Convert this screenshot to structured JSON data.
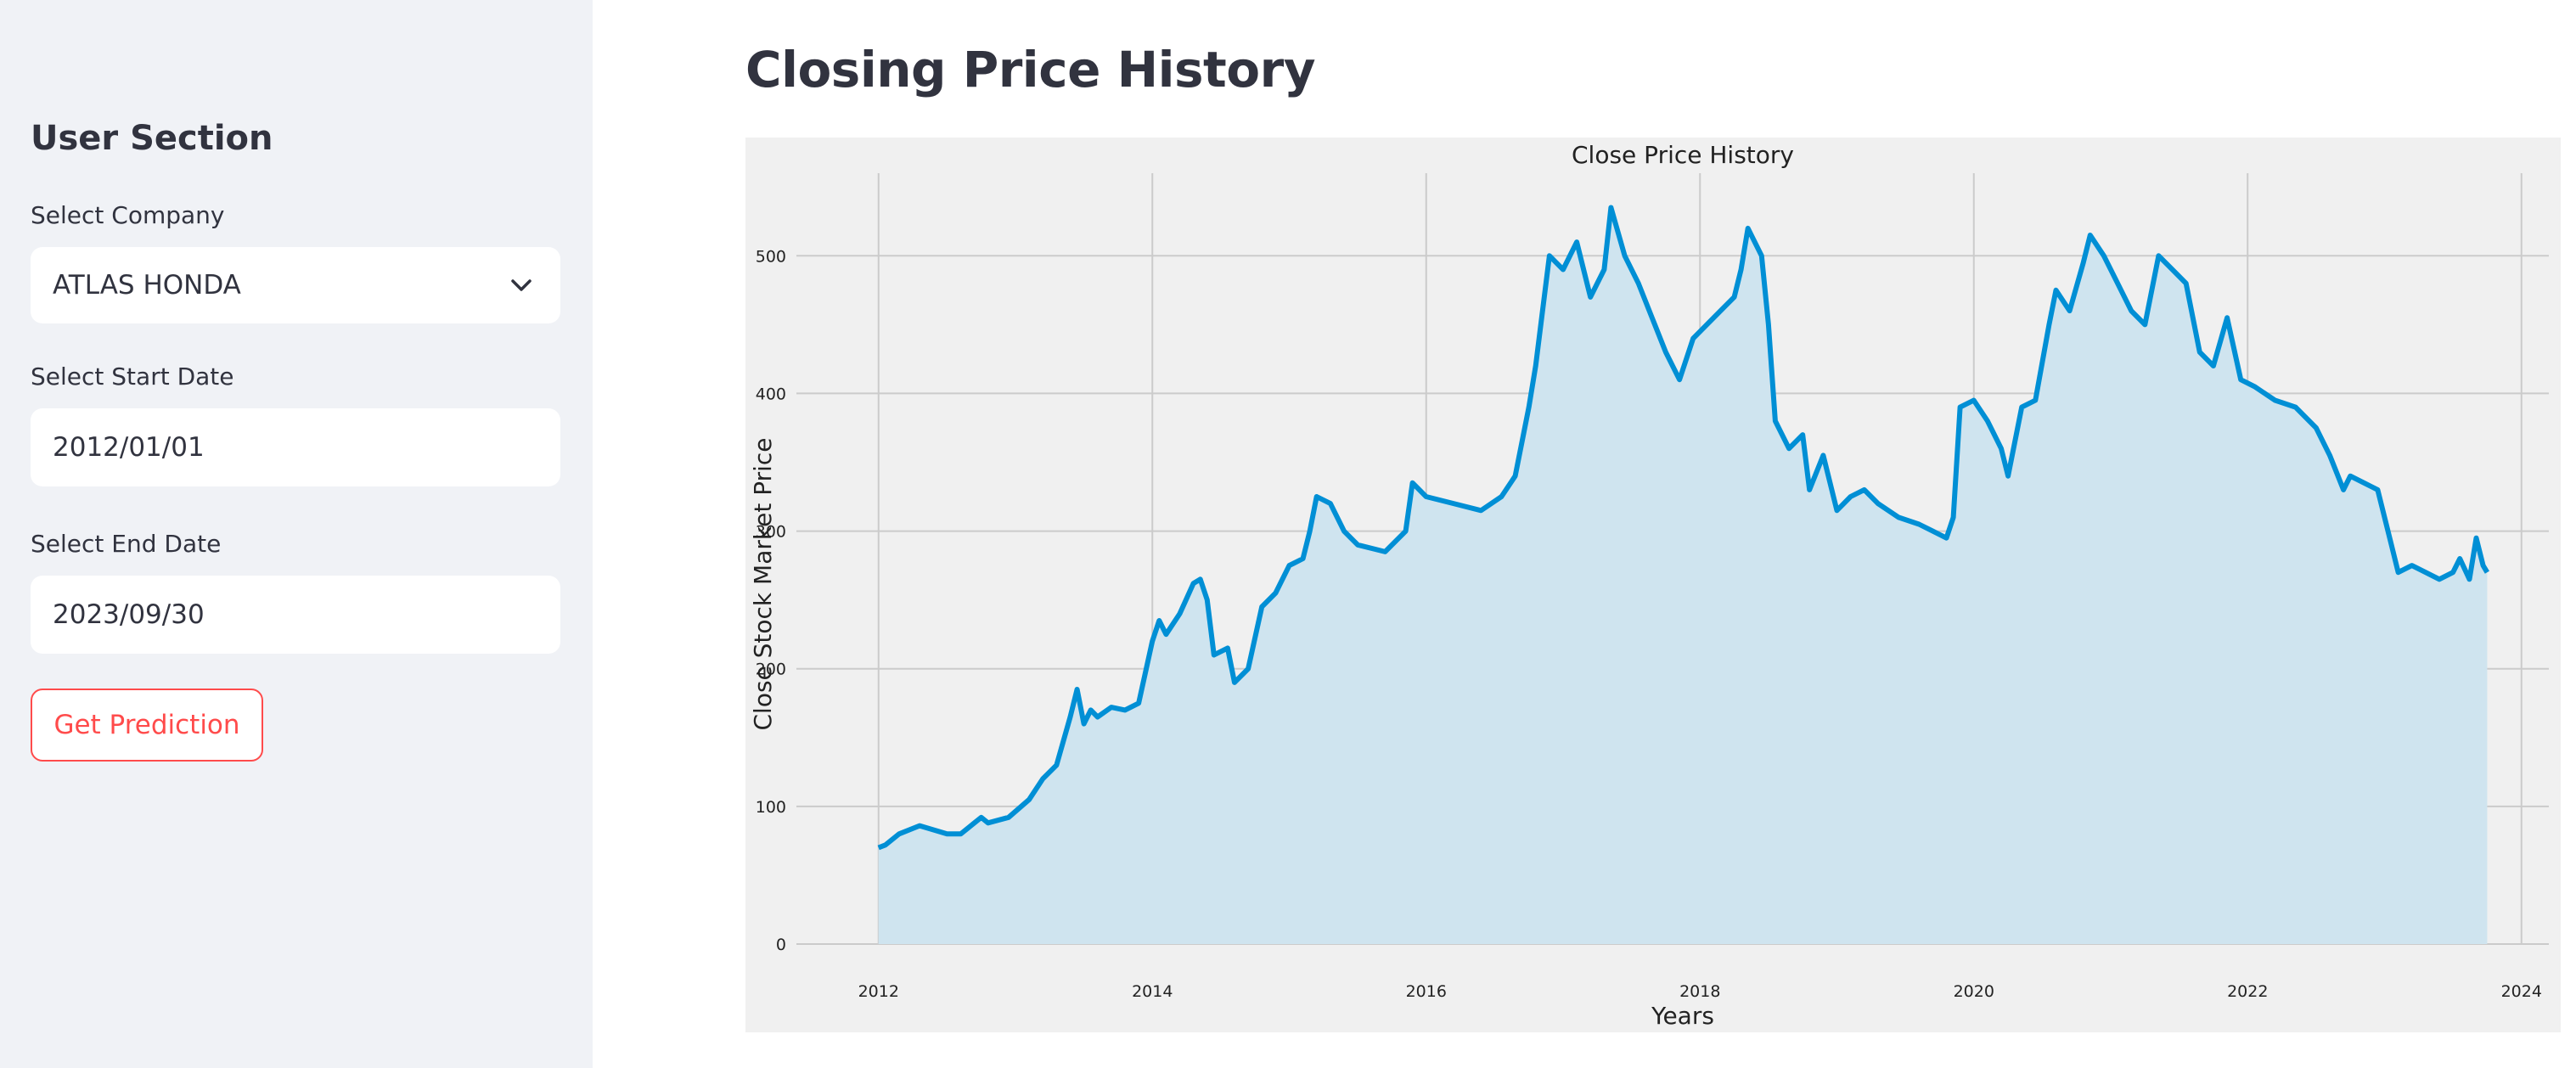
{
  "sidebar": {
    "title": "User Section",
    "company": {
      "label": "Select Company",
      "value": "ATLAS HONDA"
    },
    "start_date": {
      "label": "Select Start Date",
      "value": "2012/01/01"
    },
    "end_date": {
      "label": "Select End Date",
      "value": "2023/09/30"
    },
    "predict_button": "Get Prediction"
  },
  "main": {
    "title": "Closing Price History"
  },
  "colors": {
    "line": "#008fd5",
    "fill": "#cfe4ef",
    "chart_bg": "#f0f0f0",
    "accent": "#ff4b4b"
  },
  "chart_data": {
    "type": "area",
    "title": "Close Price History",
    "xlabel": "Years",
    "ylabel": "Close Stock Market Price",
    "xlim": [
      2011.4,
      2024.2
    ],
    "ylim": [
      0,
      560
    ],
    "xticks": [
      2012,
      2014,
      2016,
      2018,
      2020,
      2022,
      2024
    ],
    "yticks": [
      0,
      100,
      200,
      300,
      400,
      500
    ],
    "grid": true,
    "series": [
      {
        "x": [
          2012.0,
          2012.05,
          2012.15,
          2012.3,
          2012.5,
          2012.6,
          2012.75,
          2012.8,
          2012.95,
          2013.1,
          2013.2,
          2013.3,
          2013.4,
          2013.45,
          2013.5,
          2013.55,
          2013.6,
          2013.7,
          2013.8,
          2013.9,
          2014.0,
          2014.05,
          2014.1,
          2014.2,
          2014.3,
          2014.35,
          2014.4,
          2014.45,
          2014.55,
          2014.6,
          2014.7,
          2014.8,
          2014.9,
          2015.0,
          2015.1,
          2015.15,
          2015.2,
          2015.3,
          2015.4,
          2015.5,
          2015.7,
          2015.85,
          2015.9,
          2016.0,
          2016.2,
          2016.4,
          2016.55,
          2016.65,
          2016.75,
          2016.8,
          2016.85,
          2016.9,
          2017.0,
          2017.1,
          2017.2,
          2017.3,
          2017.35,
          2017.45,
          2017.55,
          2017.65,
          2017.75,
          2017.85,
          2017.95,
          2018.05,
          2018.15,
          2018.25,
          2018.3,
          2018.35,
          2018.45,
          2018.5,
          2018.55,
          2018.65,
          2018.75,
          2018.8,
          2018.9,
          2019.0,
          2019.1,
          2019.2,
          2019.3,
          2019.45,
          2019.6,
          2019.7,
          2019.8,
          2019.85,
          2019.9,
          2020.0,
          2020.1,
          2020.2,
          2020.25,
          2020.35,
          2020.45,
          2020.55,
          2020.6,
          2020.7,
          2020.8,
          2020.85,
          2020.95,
          2021.05,
          2021.15,
          2021.25,
          2021.35,
          2021.45,
          2021.55,
          2021.65,
          2021.75,
          2021.85,
          2021.95,
          2022.05,
          2022.2,
          2022.35,
          2022.5,
          2022.6,
          2022.7,
          2022.75,
          2022.85,
          2022.95,
          2023.05,
          2023.1,
          2023.2,
          2023.3,
          2023.4,
          2023.5,
          2023.55,
          2023.62,
          2023.67,
          2023.72,
          2023.75
        ],
        "y": [
          70,
          72,
          80,
          86,
          80,
          80,
          92,
          88,
          92,
          105,
          120,
          130,
          165,
          185,
          160,
          170,
          165,
          172,
          170,
          175,
          220,
          235,
          225,
          240,
          262,
          265,
          250,
          210,
          215,
          190,
          200,
          245,
          255,
          275,
          280,
          300,
          325,
          320,
          300,
          290,
          285,
          300,
          335,
          325,
          320,
          315,
          325,
          340,
          390,
          420,
          460,
          500,
          490,
          510,
          470,
          490,
          535,
          500,
          480,
          455,
          430,
          410,
          440,
          450,
          460,
          470,
          490,
          520,
          500,
          450,
          380,
          360,
          370,
          330,
          355,
          315,
          325,
          330,
          320,
          310,
          305,
          300,
          295,
          310,
          390,
          395,
          380,
          360,
          340,
          390,
          395,
          450,
          475,
          460,
          495,
          515,
          500,
          480,
          460,
          450,
          500,
          490,
          480,
          430,
          420,
          455,
          410,
          405,
          395,
          390,
          375,
          355,
          330,
          340,
          335,
          330,
          290,
          270,
          275,
          270,
          265,
          270,
          280,
          265,
          295,
          275,
          270
        ]
      }
    ]
  }
}
